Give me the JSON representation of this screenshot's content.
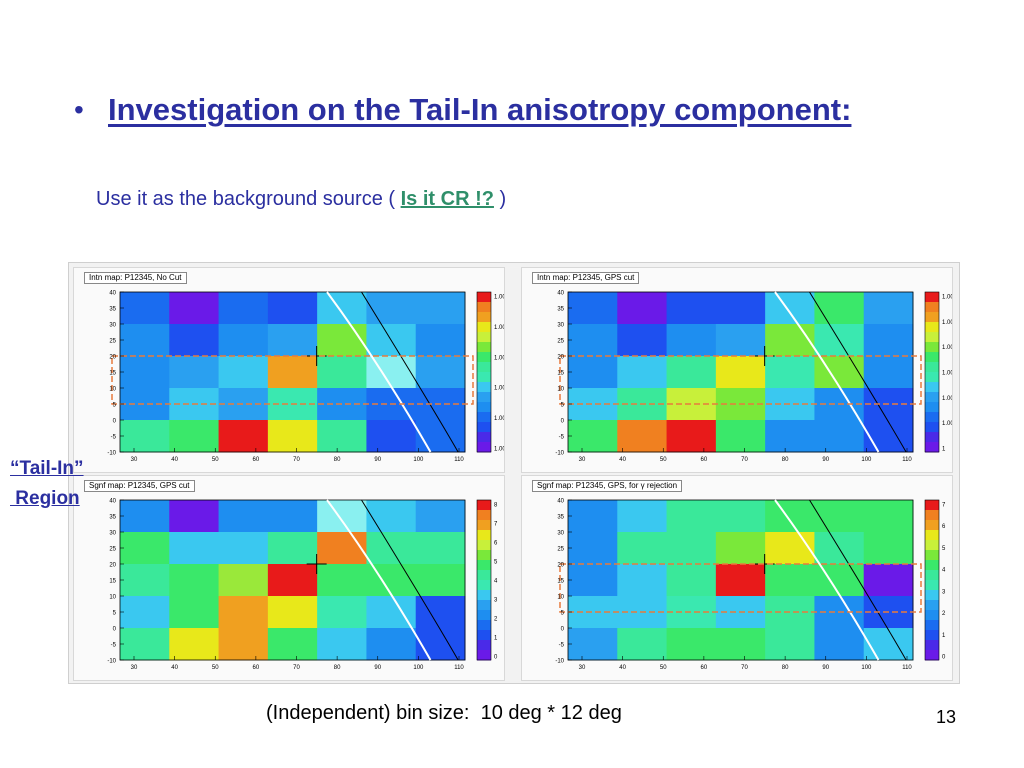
{
  "slide": {
    "bullet": "•",
    "title": "Investigation on the Tail-In anisotropy component:",
    "subtitle_prefix": "Use it as the background source ( ",
    "subtitle_link": "Is it CR !?",
    "subtitle_suffix": " )",
    "region_label_line1": "“Tail-In”",
    "region_label_line2": " Region",
    "caption": "(Independent) bin size:  10 deg * 12 deg",
    "page_number": "13"
  },
  "colors": {
    "title": "#2b2fa0",
    "link": "#2f8f6a",
    "region_box": "#e87a3c",
    "curve_white": "#ffffff",
    "curve_black": "#000000"
  },
  "panels": [
    {
      "title": "Intn map: P12345,  No Cut",
      "xticks": [
        "30",
        "40",
        "50",
        "60",
        "70",
        "80",
        "90",
        "100",
        "110"
      ],
      "yticks": [
        "40",
        "35",
        "30",
        "25",
        "20",
        "15",
        "10",
        "5",
        "0",
        "-5",
        "-10"
      ],
      "zticks": [
        "1.003",
        "1.0025",
        "1.002",
        "1.0015",
        "1.001",
        "1.0005"
      ],
      "cells": [
        [
          "#1a6cf0",
          "#6a1ae8",
          "#1a6cf0",
          "#1e50f0",
          "#3ac8f0",
          "#2aa0f0",
          "#2aa0f0"
        ],
        [
          "#1e8ef0",
          "#1e50f0",
          "#1e8ef0",
          "#2aa0f0",
          "#7ae83a",
          "#3ac8f0",
          "#1e8ef0"
        ],
        [
          "#1e8ef0",
          "#2aa0f0",
          "#3ac8f0",
          "#f0a020",
          "#3ae89a",
          "#8af0f0",
          "#2aa0f0"
        ],
        [
          "#1e8ef0",
          "#3ac8f0",
          "#2aa0f0",
          "#3ae8b0",
          "#1e8ef0",
          "#1a6cf0",
          "#1a6cf0"
        ],
        [
          "#3ae89a",
          "#3ae86a",
          "#e81a1a",
          "#e8e81a",
          "#3ae89a",
          "#1e50f0",
          "#1a6cf0"
        ]
      ],
      "box": true
    },
    {
      "title": "Intn map: P12345,  GPS cut",
      "xticks": [
        "30",
        "40",
        "50",
        "60",
        "70",
        "80",
        "90",
        "100",
        "110"
      ],
      "yticks": [
        "40",
        "35",
        "30",
        "25",
        "20",
        "15",
        "10",
        "5",
        "0",
        "-5",
        "-10"
      ],
      "zticks": [
        "1.003",
        "1.0025",
        "1.002",
        "1.0015",
        "1.001",
        "1.0005",
        "1"
      ],
      "cells": [
        [
          "#1a6cf0",
          "#6a1ae8",
          "#1e50f0",
          "#1e50f0",
          "#3ac8f0",
          "#3ae86a",
          "#2aa0f0"
        ],
        [
          "#1e8ef0",
          "#1e50f0",
          "#1e8ef0",
          "#2aa0f0",
          "#7ae83a",
          "#3ae8b0",
          "#1e8ef0"
        ],
        [
          "#1e8ef0",
          "#3ac8f0",
          "#3ae89a",
          "#e8e81a",
          "#3ae8b0",
          "#7ae83a",
          "#1e8ef0"
        ],
        [
          "#3ac8f0",
          "#3ae89a",
          "#c8f03a",
          "#7ae83a",
          "#3ac8f0",
          "#1e8ef0",
          "#1e50f0"
        ],
        [
          "#3ae86a",
          "#f08020",
          "#e81a1a",
          "#3ae86a",
          "#1e8ef0",
          "#1e8ef0",
          "#1e50f0"
        ]
      ],
      "box": true
    },
    {
      "title": "Sgnf map: P12345,  GPS cut",
      "xticks": [
        "30",
        "40",
        "50",
        "60",
        "70",
        "80",
        "90",
        "100",
        "110"
      ],
      "yticks": [
        "40",
        "35",
        "30",
        "25",
        "20",
        "15",
        "10",
        "5",
        "0",
        "-5",
        "-10"
      ],
      "zticks": [
        "8",
        "7",
        "6",
        "5",
        "4",
        "3",
        "2",
        "1",
        "0"
      ],
      "cells": [
        [
          "#1e8ef0",
          "#6a1ae8",
          "#1e8ef0",
          "#1e8ef0",
          "#8af0f0",
          "#3ac8f0",
          "#2aa0f0"
        ],
        [
          "#3ae86a",
          "#3ac8f0",
          "#3ac8f0",
          "#3ae89a",
          "#f08020",
          "#3ae89a",
          "#3ae89a"
        ],
        [
          "#3ae89a",
          "#3ae86a",
          "#9ae83a",
          "#e81a1a",
          "#3ae86a",
          "#3ae86a",
          "#3ae86a"
        ],
        [
          "#3ac8f0",
          "#3ae86a",
          "#f0a020",
          "#e8e81a",
          "#3ae8b0",
          "#3ac8f0",
          "#1e50f0"
        ],
        [
          "#3ae89a",
          "#e8e81a",
          "#f0a020",
          "#3ae86a",
          "#3ac8f0",
          "#1e8ef0",
          "#1e50f0"
        ]
      ],
      "box": false
    },
    {
      "title": "Sgnf map: P12345,  GPS,  for γ rejection",
      "xticks": [
        "30",
        "40",
        "50",
        "60",
        "70",
        "80",
        "90",
        "100",
        "110"
      ],
      "yticks": [
        "40",
        "35",
        "30",
        "25",
        "20",
        "15",
        "10",
        "5",
        "0",
        "-5",
        "-10"
      ],
      "zticks": [
        "7",
        "6",
        "5",
        "4",
        "3",
        "2",
        "1",
        "0"
      ],
      "cells": [
        [
          "#1e8ef0",
          "#3ac8f0",
          "#3ae89a",
          "#3ae89a",
          "#3ae86a",
          "#3ae86a",
          "#3ae86a"
        ],
        [
          "#1e8ef0",
          "#3ae89a",
          "#3ae89a",
          "#7ae83a",
          "#e8e81a",
          "#3ae89a",
          "#3ae86a"
        ],
        [
          "#1e8ef0",
          "#3ac8f0",
          "#3ae89a",
          "#e81a1a",
          "#3ae86a",
          "#3ae86a",
          "#6a1ae8"
        ],
        [
          "#3ac8f0",
          "#3ac8f0",
          "#3ae8b0",
          "#3ac8f0",
          "#3ae89a",
          "#1e8ef0",
          "#1e50f0"
        ],
        [
          "#2aa0f0",
          "#3ae89a",
          "#3ae86a",
          "#3ae86a",
          "#3ae89a",
          "#1e8ef0",
          "#3ac8f0"
        ]
      ],
      "box": true
    }
  ]
}
